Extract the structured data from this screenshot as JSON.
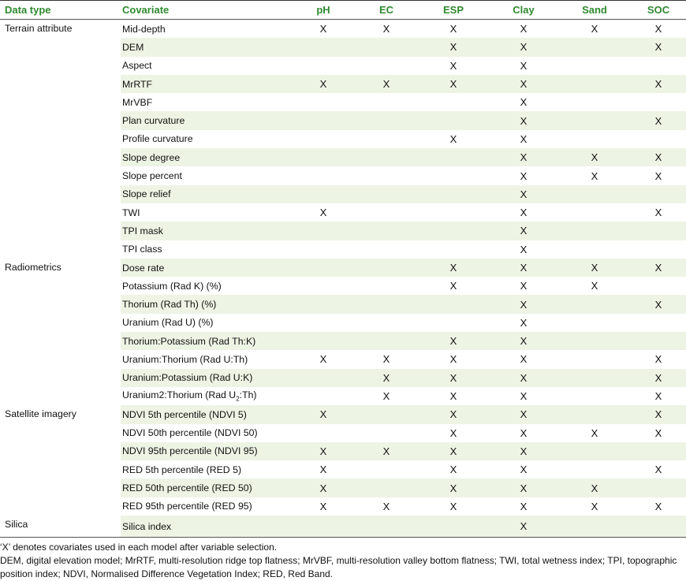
{
  "headers": {
    "data_type": "Data type",
    "covariate": "Covariate",
    "ph": "pH",
    "ec": "EC",
    "esp": "ESP",
    "clay": "Clay",
    "sand": "Sand",
    "soc": "SOC"
  },
  "mark": "X",
  "groups": [
    {
      "label": "Terrain attribute",
      "rows": [
        {
          "covariate": "Mid-depth",
          "marks": [
            1,
            1,
            1,
            1,
            1,
            1
          ]
        },
        {
          "covariate": "DEM",
          "marks": [
            0,
            0,
            1,
            1,
            0,
            1
          ]
        },
        {
          "covariate": "Aspect",
          "marks": [
            0,
            0,
            1,
            1,
            0,
            0
          ]
        },
        {
          "covariate": "MrRTF",
          "marks": [
            1,
            1,
            1,
            1,
            0,
            1
          ]
        },
        {
          "covariate": "MrVBF",
          "marks": [
            0,
            0,
            0,
            1,
            0,
            0
          ]
        },
        {
          "covariate": "Plan curvature",
          "marks": [
            0,
            0,
            0,
            1,
            0,
            1
          ]
        },
        {
          "covariate": "Profile curvature",
          "marks": [
            0,
            0,
            1,
            1,
            0,
            0
          ]
        },
        {
          "covariate": "Slope degree",
          "marks": [
            0,
            0,
            0,
            1,
            1,
            1
          ]
        },
        {
          "covariate": "Slope percent",
          "marks": [
            0,
            0,
            0,
            1,
            1,
            1
          ]
        },
        {
          "covariate": "Slope relief",
          "marks": [
            0,
            0,
            0,
            1,
            0,
            0
          ]
        },
        {
          "covariate": "TWI",
          "marks": [
            1,
            0,
            0,
            1,
            0,
            1
          ]
        },
        {
          "covariate": "TPI mask",
          "marks": [
            0,
            0,
            0,
            1,
            0,
            0
          ]
        },
        {
          "covariate": "TPI class",
          "marks": [
            0,
            0,
            0,
            1,
            0,
            0
          ]
        }
      ]
    },
    {
      "label": "Radiometrics",
      "rows": [
        {
          "covariate": "Dose rate",
          "marks": [
            0,
            0,
            1,
            1,
            1,
            1
          ]
        },
        {
          "covariate": "Potassium (Rad K) (%)",
          "marks": [
            0,
            0,
            1,
            1,
            1,
            0
          ]
        },
        {
          "covariate": "Thorium (Rad Th) (%)",
          "marks": [
            0,
            0,
            0,
            1,
            0,
            1
          ]
        },
        {
          "covariate": "Uranium (Rad U) (%)",
          "marks": [
            0,
            0,
            0,
            1,
            0,
            0
          ]
        },
        {
          "covariate": "Thorium:Potassium (Rad Th:K)",
          "marks": [
            0,
            0,
            1,
            1,
            0,
            0
          ]
        },
        {
          "covariate": "Uranium:Thorium (Rad U:Th)",
          "marks": [
            1,
            1,
            1,
            1,
            0,
            1
          ]
        },
        {
          "covariate": "Uranium:Potassium (Rad U:K)",
          "marks": [
            0,
            1,
            1,
            1,
            0,
            1
          ]
        },
        {
          "covariate": "Uranium2:Thorium (Rad U",
          "sub": "2",
          "tail": ":Th)",
          "marks": [
            0,
            1,
            1,
            1,
            0,
            1
          ]
        }
      ]
    },
    {
      "label": "Satellite imagery",
      "rows": [
        {
          "covariate": "NDVI 5th percentile (NDVI 5)",
          "marks": [
            1,
            0,
            1,
            1,
            0,
            1
          ]
        },
        {
          "covariate": "NDVI 50th percentile (NDVI 50)",
          "marks": [
            0,
            0,
            1,
            1,
            1,
            1
          ]
        },
        {
          "covariate": "NDVI 95th percentile (NDVI 95)",
          "marks": [
            1,
            1,
            1,
            1,
            0,
            0
          ]
        },
        {
          "covariate": "RED 5th percentile (RED 5)",
          "marks": [
            1,
            0,
            1,
            1,
            0,
            1
          ]
        },
        {
          "covariate": "RED 50th percentile (RED 50)",
          "marks": [
            1,
            0,
            1,
            1,
            1,
            0
          ]
        },
        {
          "covariate": "RED 95th percentile (RED 95)",
          "marks": [
            1,
            1,
            1,
            1,
            1,
            1
          ]
        }
      ]
    },
    {
      "label": "Silica",
      "rows": [
        {
          "covariate": "Silica index",
          "marks": [
            0,
            0,
            0,
            1,
            0,
            0
          ]
        }
      ]
    }
  ],
  "notes": [
    "‘X’ denotes covariates used in each model after variable selection.",
    "DEM, digital elevation model; MrRTF, multi-resolution ridge top flatness; MrVBF, multi-resolution valley bottom flatness; TWI, total wetness index; TPI, topographic position index; NDVI, Normalised Difference Vegetation Index; RED, Red Band."
  ]
}
